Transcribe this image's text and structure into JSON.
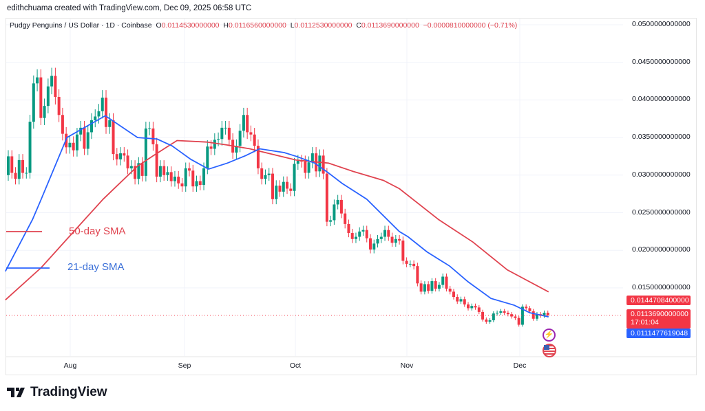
{
  "credit": "edithchuama created with TradingView.com, Dec 09, 2025 06:58 UTC",
  "legend": {
    "symbol": "Pudgy Penguins / US Dollar · 1D · Coinbase",
    "o_label": "O",
    "o": "0.0114530000000",
    "h_label": "H",
    "h": "0.0116560000000",
    "l_label": "L",
    "l": "0.0112530000000",
    "c_label": "C",
    "c": "0.0113690000000",
    "change": "−0.0000810000000 (−0.71%)"
  },
  "price_axis": [
    "0.0500000000000",
    "0.0450000000000",
    "0.0400000000000",
    "0.0350000000000",
    "0.0300000000000",
    "0.0250000000000",
    "0.0200000000000",
    "0.0150000000000"
  ],
  "time_axis": [
    "Aug",
    "Sep",
    "Oct",
    "Nov",
    "Dec"
  ],
  "tags": {
    "sma50": "0.0144708400000",
    "last_price": "0.0113690000000",
    "countdown": "17:01:04",
    "sma21": "0.0111477619048"
  },
  "sma_labels": {
    "sma50": "50-day SMA",
    "sma21": "21-day SMA"
  },
  "logo": "TradingView",
  "colors": {
    "up": "#089981",
    "down": "#f23645",
    "sma21": "#2962ff",
    "sma50": "#e0434f"
  },
  "chart_data": {
    "type": "candlestick",
    "interval": "1D",
    "ylim": [
      0.0095,
      0.05
    ],
    "grid": true,
    "close": [
      0.0325,
      0.0303,
      0.0295,
      0.032,
      0.0303,
      0.0303,
      0.0371,
      0.0422,
      0.043,
      0.0376,
      0.0392,
      0.0418,
      0.0432,
      0.0404,
      0.038,
      0.0355,
      0.0337,
      0.0343,
      0.0333,
      0.0354,
      0.0363,
      0.0335,
      0.0357,
      0.0373,
      0.0378,
      0.0385,
      0.0403,
      0.0364,
      0.0373,
      0.0328,
      0.0321,
      0.0329,
      0.0326,
      0.0309,
      0.0312,
      0.0295,
      0.0316,
      0.0299,
      0.0362,
      0.0362,
      0.0341,
      0.0298,
      0.0312,
      0.03,
      0.0304,
      0.0292,
      0.0298,
      0.0289,
      0.0285,
      0.0309,
      0.0306,
      0.0285,
      0.0292,
      0.0287,
      0.0309,
      0.0338,
      0.0335,
      0.0347,
      0.0348,
      0.0363,
      0.0363,
      0.0347,
      0.033,
      0.0339,
      0.0359,
      0.038,
      0.0357,
      0.0354,
      0.0339,
      0.0309,
      0.0295,
      0.03,
      0.0302,
      0.0268,
      0.0286,
      0.0278,
      0.0291,
      0.0282,
      0.0279,
      0.0315,
      0.0319,
      0.0318,
      0.0303,
      0.0317,
      0.0329,
      0.0305,
      0.0326,
      0.0302,
      0.0238,
      0.024,
      0.0261,
      0.0267,
      0.0249,
      0.0235,
      0.0223,
      0.0215,
      0.0218,
      0.0225,
      0.0227,
      0.0216,
      0.0201,
      0.0209,
      0.0215,
      0.0218,
      0.0227,
      0.0218,
      0.021,
      0.0215,
      0.0213,
      0.0186,
      0.0182,
      0.0182,
      0.0179,
      0.0156,
      0.0145,
      0.0155,
      0.0146,
      0.0159,
      0.0149,
      0.0154,
      0.0165,
      0.0149,
      0.0145,
      0.0138,
      0.0132,
      0.0135,
      0.0128,
      0.0123,
      0.0126,
      0.0124,
      0.0118,
      0.0108,
      0.0105,
      0.0107,
      0.0116,
      0.0117,
      0.0119,
      0.0117,
      0.0115,
      0.0112,
      0.011,
      0.0101,
      0.0125,
      0.0123,
      0.0119,
      0.0109,
      0.0115,
      0.0113,
      0.0117,
      0.011369
    ],
    "sma21": [
      [
        -0.8,
        0.0172
      ],
      [
        6.7,
        0.0241
      ],
      [
        9.1,
        0.0268
      ],
      [
        16.2,
        0.035
      ],
      [
        26.8,
        0.0379
      ],
      [
        35.7,
        0.035
      ],
      [
        41.1,
        0.0348
      ],
      [
        45.2,
        0.0339
      ],
      [
        50.4,
        0.0321
      ],
      [
        55.3,
        0.0308
      ],
      [
        60.5,
        0.0316
      ],
      [
        65.6,
        0.0326
      ],
      [
        69.4,
        0.0335
      ],
      [
        76.2,
        0.033
      ],
      [
        79.5,
        0.0325
      ],
      [
        84.6,
        0.0316
      ],
      [
        88.4,
        0.0303
      ],
      [
        92.2,
        0.0289
      ],
      [
        99,
        0.0268
      ],
      [
        108,
        0.0225
      ],
      [
        110.4,
        0.0218
      ],
      [
        115.6,
        0.0198
      ],
      [
        121.9,
        0.0179
      ],
      [
        127,
        0.0158
      ],
      [
        133.3,
        0.0136
      ],
      [
        139.7,
        0.0127
      ],
      [
        144,
        0.0117
      ],
      [
        149.2,
        0.01115
      ]
    ],
    "sma50": [
      [
        -0.8,
        0.0134
      ],
      [
        9.1,
        0.0177
      ],
      [
        21.1,
        0.0241
      ],
      [
        26.2,
        0.0268
      ],
      [
        35.7,
        0.0312
      ],
      [
        40.1,
        0.0326
      ],
      [
        46.6,
        0.0346
      ],
      [
        54.8,
        0.0344
      ],
      [
        60.5,
        0.034
      ],
      [
        66.7,
        0.0335
      ],
      [
        79.5,
        0.032
      ],
      [
        88.4,
        0.0316
      ],
      [
        95.2,
        0.0305
      ],
      [
        103.6,
        0.0293
      ],
      [
        108,
        0.0282
      ],
      [
        118.8,
        0.0241
      ],
      [
        128.3,
        0.0211
      ],
      [
        137.8,
        0.0174
      ],
      [
        149.2,
        0.01447
      ]
    ]
  }
}
